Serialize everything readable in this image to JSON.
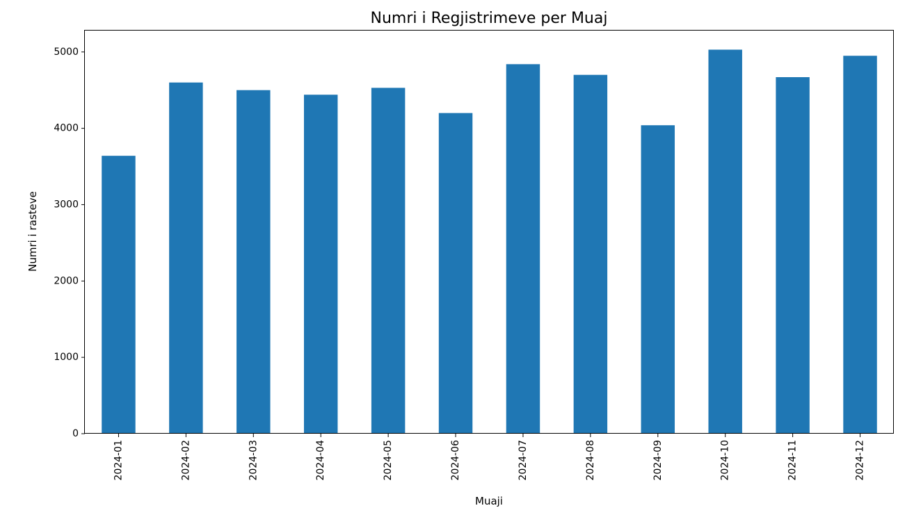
{
  "chart_data": {
    "type": "bar",
    "title": "Numri i Regjistrimeve per Muaj",
    "xlabel": "Muaji",
    "ylabel": "Numri i rasteve",
    "categories": [
      "2024-01",
      "2024-02",
      "2024-03",
      "2024-04",
      "2024-05",
      "2024-06",
      "2024-07",
      "2024-08",
      "2024-09",
      "2024-10",
      "2024-11",
      "2024-12"
    ],
    "values": [
      3640,
      4600,
      4500,
      4440,
      4530,
      4200,
      4840,
      4700,
      4040,
      5030,
      4670,
      4950
    ],
    "ylim": [
      0,
      5280
    ],
    "yticks": [
      0,
      1000,
      2000,
      3000,
      4000,
      5000
    ],
    "ytick_labels": [
      "0",
      "1000",
      "2000",
      "3000",
      "4000",
      "5000"
    ],
    "bar_color": "#1f77b4",
    "grid": false,
    "legend": "none"
  }
}
